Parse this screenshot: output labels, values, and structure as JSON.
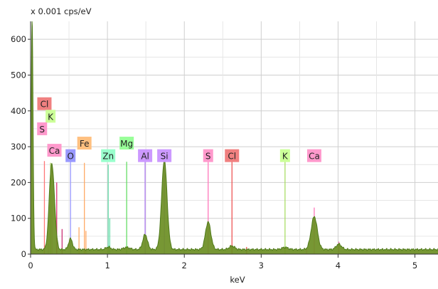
{
  "chart_data": {
    "type": "area",
    "title": "",
    "ylabel": "x 0.001 cps/eV",
    "xlabel": "keV",
    "xlim": [
      0,
      5.3
    ],
    "ylim": [
      0,
      650
    ],
    "x_ticks": [
      0,
      1,
      2,
      3,
      4,
      5
    ],
    "y_ticks": [
      0,
      100,
      200,
      300,
      400,
      500,
      600
    ],
    "grid": true,
    "fill_color": "#6b8e23",
    "line_color": "#4f7a1a",
    "spectrum": {
      "baseline": 13,
      "peaks": [
        {
          "center": 0.02,
          "height": 640,
          "width": 0.012
        },
        {
          "center": 0.27,
          "height": 220,
          "width": 0.03
        },
        {
          "center": 0.31,
          "height": 60,
          "width": 0.025
        },
        {
          "center": 0.52,
          "height": 30,
          "width": 0.025
        },
        {
          "center": 1.01,
          "height": 7,
          "width": 0.03
        },
        {
          "center": 1.25,
          "height": 6,
          "width": 0.04
        },
        {
          "center": 1.49,
          "height": 42,
          "width": 0.03
        },
        {
          "center": 1.74,
          "height": 250,
          "width": 0.035
        },
        {
          "center": 2.31,
          "height": 77,
          "width": 0.035
        },
        {
          "center": 2.62,
          "height": 10,
          "width": 0.035
        },
        {
          "center": 3.31,
          "height": 6,
          "width": 0.04
        },
        {
          "center": 3.69,
          "height": 92,
          "width": 0.04
        },
        {
          "center": 4.01,
          "height": 15,
          "width": 0.035
        }
      ]
    },
    "element_markers": [
      {
        "label": "Cl",
        "x": 0.18,
        "height": 415,
        "label_y": 420,
        "color": "#f08080",
        "line": false
      },
      {
        "label": "K",
        "x": 0.26,
        "height": 385,
        "label_y": 385,
        "color": "#ccff99",
        "line": false
      },
      {
        "label": "S",
        "x": 0.15,
        "height": 350,
        "label_y": 350,
        "color": "#ff99cc",
        "line": false
      },
      {
        "label": "Ca",
        "x": 0.31,
        "height": 290,
        "label_y": 290,
        "color": "#ff99cc",
        "line": true
      },
      {
        "label": "O",
        "x": 0.52,
        "height": 275,
        "label_y": 275,
        "color": "#9999ff",
        "line": true
      },
      {
        "label": "Fe",
        "x": 0.7,
        "height": 305,
        "label_y": 310,
        "color": "#ffc080",
        "line": true
      },
      {
        "label": "Zn",
        "x": 1.01,
        "height": 275,
        "label_y": 275,
        "color": "#99ffcc",
        "line": true
      },
      {
        "label": "Mg",
        "x": 1.25,
        "height": 305,
        "label_y": 310,
        "color": "#99ff99",
        "line": true
      },
      {
        "label": "Al",
        "x": 1.49,
        "height": 275,
        "label_y": 275,
        "color": "#cc99ff",
        "line": true
      },
      {
        "label": "Si",
        "x": 1.74,
        "height": 275,
        "label_y": 275,
        "color": "#cc99ff",
        "line": true
      },
      {
        "label": "S",
        "x": 2.31,
        "height": 275,
        "label_y": 275,
        "color": "#ff99cc",
        "line": true
      },
      {
        "label": "Cl",
        "x": 2.62,
        "height": 275,
        "label_y": 275,
        "color": "#f08080",
        "line": true
      },
      {
        "label": "K",
        "x": 3.31,
        "height": 275,
        "label_y": 275,
        "color": "#ccff99",
        "line": true
      },
      {
        "label": "Ca",
        "x": 3.69,
        "height": 275,
        "label_y": 275,
        "color": "#ff99cc",
        "line": true
      }
    ],
    "marker_lines": [
      {
        "x": 0.18,
        "height": 260,
        "color": "#ff7777"
      },
      {
        "x": 0.23,
        "height": 30,
        "color": "#ff99cc"
      },
      {
        "x": 0.26,
        "height": 255,
        "color": "#aacc66"
      },
      {
        "x": 0.28,
        "height": 245,
        "color": "#ff99cc"
      },
      {
        "x": 0.34,
        "height": 200,
        "color": "#dd3377"
      },
      {
        "x": 0.41,
        "height": 70,
        "color": "#cc3377"
      },
      {
        "x": 0.52,
        "height": 275,
        "color": "#9999ff"
      },
      {
        "x": 0.63,
        "height": 75,
        "color": "#ffaa66"
      },
      {
        "x": 0.7,
        "height": 255,
        "color": "#ffaa66"
      },
      {
        "x": 0.72,
        "height": 65,
        "color": "#ffaa66"
      },
      {
        "x": 1.01,
        "height": 250,
        "color": "#66ddaa"
      },
      {
        "x": 1.03,
        "height": 100,
        "color": "#66ddaa"
      },
      {
        "x": 1.25,
        "height": 258,
        "color": "#66dd66"
      },
      {
        "x": 1.49,
        "height": 275,
        "color": "#aa77ee"
      },
      {
        "x": 1.74,
        "height": 275,
        "color": "#aa77ee"
      },
      {
        "x": 2.31,
        "height": 275,
        "color": "#ff77bb"
      },
      {
        "x": 2.62,
        "height": 275,
        "color": "#ee5555"
      },
      {
        "x": 2.81,
        "height": 20,
        "color": "#ee5555"
      },
      {
        "x": 3.31,
        "height": 275,
        "color": "#aadd66"
      },
      {
        "x": 3.59,
        "height": 15,
        "color": "#ff77bb"
      },
      {
        "x": 3.69,
        "height": 130,
        "color": "#ff77bb"
      },
      {
        "x": 4.01,
        "height": 35,
        "color": "#ff77bb"
      }
    ]
  }
}
